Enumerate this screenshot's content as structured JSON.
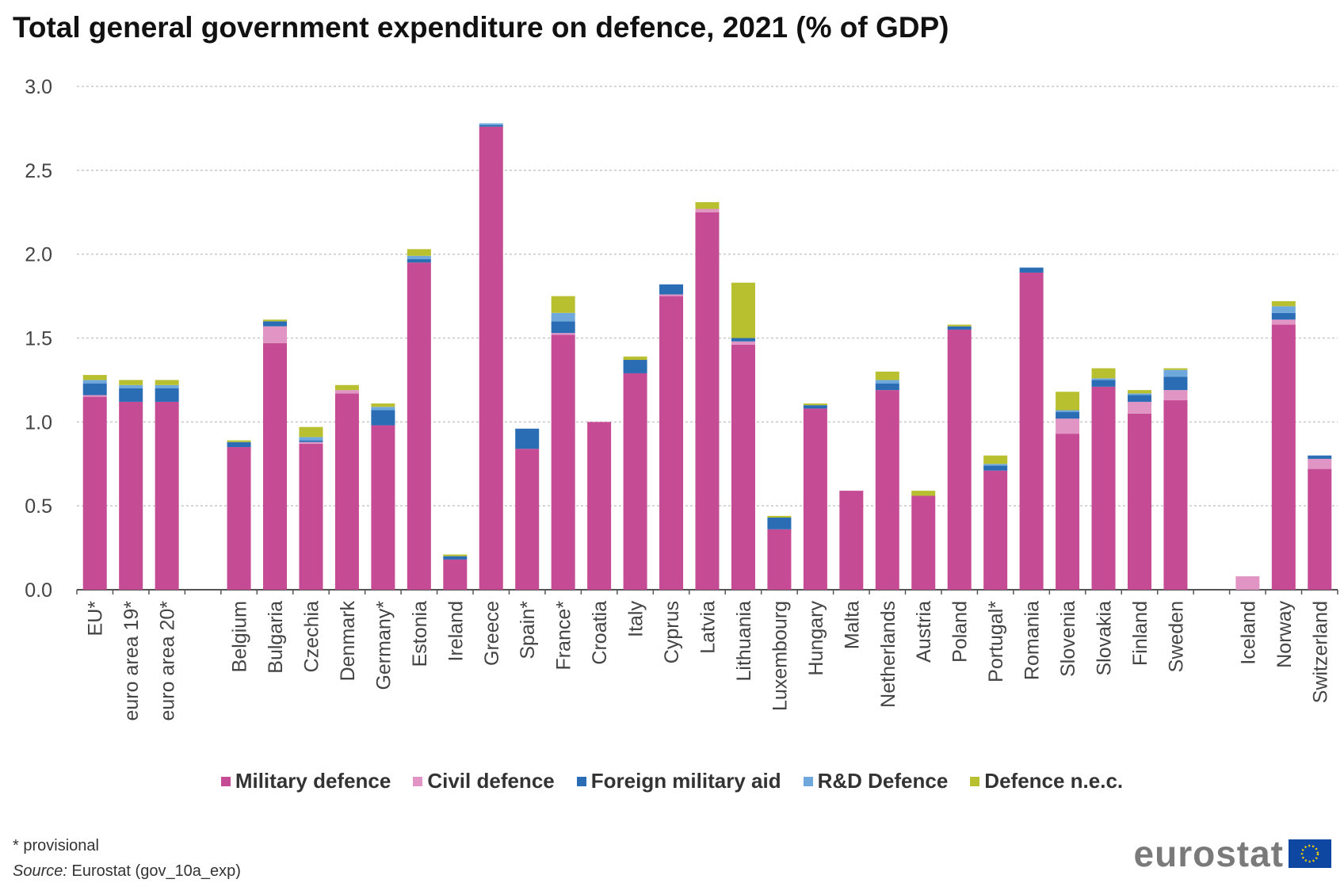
{
  "chart_data": {
    "type": "bar",
    "stacked": true,
    "title": "Total general government expenditure on defence, 2021 (% of GDP)",
    "xlabel": "",
    "ylabel": "",
    "ylim": [
      0,
      3.0
    ],
    "yticks": [
      "0.0",
      "0.5",
      "1.0",
      "1.5",
      "2.0",
      "2.5",
      "3.0"
    ],
    "grid": true,
    "legend_position": "bottom",
    "groups": [
      [
        "EU*",
        "euro area 19*",
        "euro area 20*"
      ],
      [
        "Belgium",
        "Bulgaria",
        "Czechia",
        "Denmark",
        "Germany*",
        "Estonia",
        "Ireland",
        "Greece",
        "Spain*",
        "France*",
        "Croatia",
        "Italy",
        "Cyprus",
        "Latvia",
        "Lithuania",
        "Luxembourg",
        "Hungary",
        "Malta",
        "Netherlands",
        "Austria",
        "Poland",
        "Portugal*",
        "Romania",
        "Slovenia",
        "Slovakia",
        "Finland",
        "Sweden"
      ],
      [
        "Iceland",
        "Norway",
        "Switzerland"
      ]
    ],
    "categories": [
      "EU*",
      "euro area 19*",
      "euro area 20*",
      "Belgium",
      "Bulgaria",
      "Czechia",
      "Denmark",
      "Germany*",
      "Estonia",
      "Ireland",
      "Greece",
      "Spain*",
      "France*",
      "Croatia",
      "Italy",
      "Cyprus",
      "Latvia",
      "Lithuania",
      "Luxembourg",
      "Hungary",
      "Malta",
      "Netherlands",
      "Austria",
      "Poland",
      "Portugal*",
      "Romania",
      "Slovenia",
      "Slovakia",
      "Finland",
      "Sweden",
      "Iceland",
      "Norway",
      "Switzerland"
    ],
    "series": [
      {
        "name": "Military defence",
        "color": "#c54b94",
        "values": [
          1.15,
          1.12,
          1.12,
          0.85,
          1.47,
          0.87,
          1.17,
          0.98,
          1.95,
          0.18,
          2.76,
          0.84,
          1.52,
          1.0,
          1.29,
          1.75,
          2.25,
          1.46,
          0.36,
          1.08,
          0.59,
          1.19,
          0.56,
          1.55,
          0.71,
          1.89,
          0.93,
          1.21,
          1.05,
          1.13,
          0.0,
          1.58,
          0.72
        ]
      },
      {
        "name": "Civil defence",
        "color": "#e095c4",
        "values": [
          0.01,
          0.0,
          0.0,
          0.0,
          0.1,
          0.01,
          0.02,
          0.0,
          0.0,
          0.0,
          0.0,
          0.0,
          0.01,
          0.0,
          0.0,
          0.01,
          0.02,
          0.02,
          0.0,
          0.0,
          0.0,
          0.0,
          0.0,
          0.0,
          0.0,
          0.0,
          0.09,
          0.0,
          0.07,
          0.06,
          0.08,
          0.03,
          0.06
        ]
      },
      {
        "name": "Foreign military aid",
        "color": "#2a6db5",
        "values": [
          0.07,
          0.08,
          0.08,
          0.03,
          0.03,
          0.01,
          0.0,
          0.09,
          0.02,
          0.02,
          0.01,
          0.12,
          0.07,
          0.0,
          0.08,
          0.06,
          0.0,
          0.02,
          0.07,
          0.02,
          0.0,
          0.04,
          0.0,
          0.02,
          0.03,
          0.03,
          0.04,
          0.04,
          0.04,
          0.08,
          0.0,
          0.04,
          0.02
        ]
      },
      {
        "name": "R&D Defence",
        "color": "#6fa8dc",
        "values": [
          0.02,
          0.02,
          0.02,
          0.0,
          0.0,
          0.02,
          0.0,
          0.02,
          0.02,
          0.0,
          0.01,
          0.0,
          0.05,
          0.0,
          0.0,
          0.0,
          0.0,
          0.0,
          0.0,
          0.0,
          0.0,
          0.02,
          0.0,
          0.0,
          0.01,
          0.0,
          0.01,
          0.01,
          0.01,
          0.04,
          0.0,
          0.04,
          0.0
        ]
      },
      {
        "name": "Defence n.e.c.",
        "color": "#b9c030",
        "values": [
          0.03,
          0.03,
          0.03,
          0.01,
          0.01,
          0.06,
          0.03,
          0.02,
          0.04,
          0.01,
          0.0,
          0.0,
          0.1,
          0.0,
          0.02,
          0.0,
          0.04,
          0.33,
          0.01,
          0.01,
          0.0,
          0.05,
          0.03,
          0.01,
          0.05,
          0.0,
          0.11,
          0.06,
          0.02,
          0.01,
          0.0,
          0.03,
          0.0
        ]
      }
    ]
  },
  "footer": {
    "note": "* provisional",
    "source_label": "Source:",
    "source_text": " Eurostat (gov_10a_exp)"
  },
  "logo": {
    "text": "eurostat",
    "flag_color": "#0e47a1"
  }
}
